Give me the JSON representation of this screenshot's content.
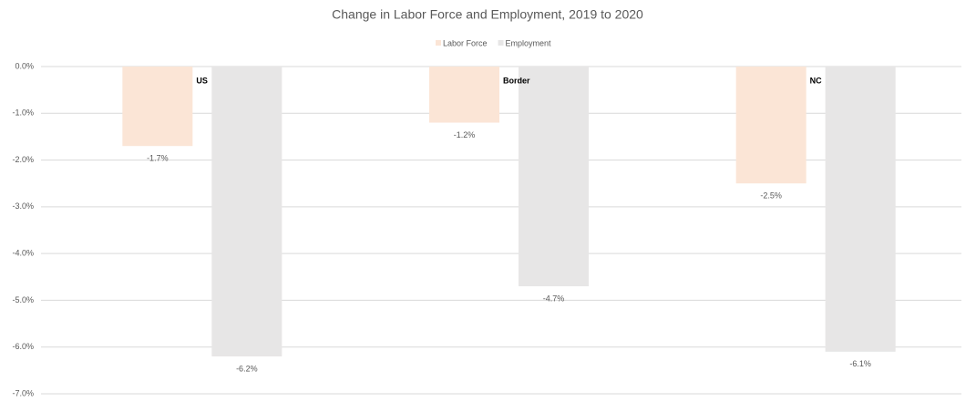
{
  "chart_data": {
    "type": "bar",
    "title": "Change in Labor Force and Employment, 2019 to 2020",
    "categories": [
      "US",
      "Border",
      "NC"
    ],
    "series": [
      {
        "name": "Labor Force",
        "color": "#fbe5d6",
        "values": [
          -1.7,
          -1.2,
          -2.5
        ],
        "value_labels": [
          "-1.7%",
          "-1.2%",
          "-2.5%"
        ]
      },
      {
        "name": "Employment",
        "color": "#e7e6e6",
        "values": [
          -6.2,
          -4.7,
          -6.1
        ],
        "value_labels": [
          "-6.2%",
          "-4.7%",
          "-6.1%"
        ]
      }
    ],
    "ylim": [
      -7,
      0
    ],
    "yticks": [
      {
        "value": 0,
        "label": "0.0%"
      },
      {
        "value": -1,
        "label": "-1.0%"
      },
      {
        "value": -2,
        "label": "-2.0%"
      },
      {
        "value": -3,
        "label": "-3.0%"
      },
      {
        "value": -4,
        "label": "-4.0%"
      },
      {
        "value": -5,
        "label": "-5.0%"
      },
      {
        "value": -6,
        "label": "-6.0%"
      },
      {
        "value": -7,
        "label": "-7.0%"
      }
    ],
    "grid": true,
    "legend": "top"
  }
}
